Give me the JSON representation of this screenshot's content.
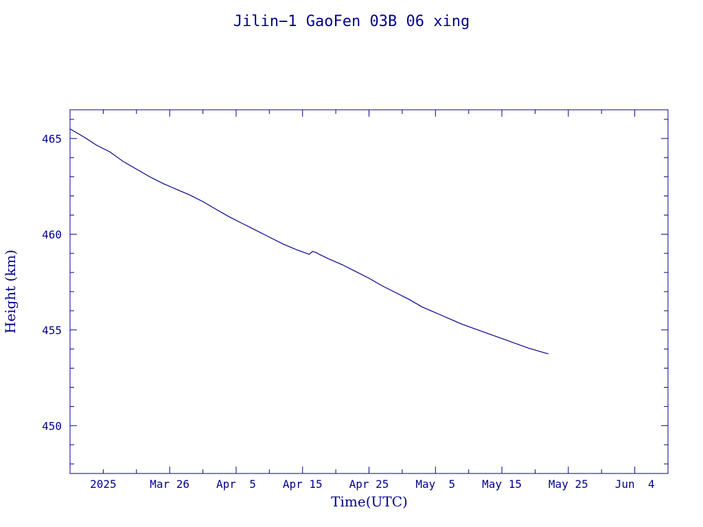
{
  "chart_data": {
    "type": "line",
    "title": "Jilin−1 GaoFen 03B 06 xing",
    "xlabel": "Time(UTC)",
    "ylabel": "Height (km)",
    "xlim": [
      "2025-03-11",
      "2025-06-09"
    ],
    "ylim": [
      447.5,
      466.5
    ],
    "y_major_ticks": [
      450,
      455,
      460,
      465
    ],
    "y_minor_step": 1,
    "x_tick_labels": [
      {
        "date": "2025-03-16",
        "label": "2025"
      },
      {
        "date": "2025-03-26",
        "label": "Mar 26"
      },
      {
        "date": "2025-04-05",
        "label": "Apr  5"
      },
      {
        "date": "2025-04-15",
        "label": "Apr 15"
      },
      {
        "date": "2025-04-25",
        "label": "Apr 25"
      },
      {
        "date": "2025-05-05",
        "label": "May  5"
      },
      {
        "date": "2025-05-15",
        "label": "May 15"
      },
      {
        "date": "2025-05-25",
        "label": "May 25"
      },
      {
        "date": "2025-06-04",
        "label": "Jun  4"
      }
    ],
    "x_minor_ticks": [
      "2025-03-16",
      "2025-03-21",
      "2025-03-26",
      "2025-03-31",
      "2025-04-05",
      "2025-04-10",
      "2025-04-15",
      "2025-04-20",
      "2025-04-25",
      "2025-04-30",
      "2025-05-05",
      "2025-05-10",
      "2025-05-15",
      "2025-05-20",
      "2025-05-25",
      "2025-05-30",
      "2025-06-04"
    ],
    "x_major_ticks": [
      "2025-03-26",
      "2025-04-05",
      "2025-04-15",
      "2025-04-25",
      "2025-05-05",
      "2025-05-15",
      "2025-05-25",
      "2025-06-04"
    ],
    "grid": false,
    "series": [
      {
        "x": [
          "2025-03-11",
          "2025-03-13",
          "2025-03-15",
          "2025-03-17",
          "2025-03-19",
          "2025-03-21",
          "2025-03-23",
          "2025-03-25",
          "2025-03-27",
          "2025-03-29",
          "2025-03-31",
          "2025-04-02",
          "2025-04-04",
          "2025-04-06",
          "2025-04-08",
          "2025-04-10",
          "2025-04-12",
          "2025-04-14",
          "2025-04-16",
          "2025-04-16T12:00",
          "2025-04-17",
          "2025-04-17T12:00",
          "2025-04-19",
          "2025-04-21",
          "2025-04-23",
          "2025-04-25",
          "2025-04-27",
          "2025-04-29",
          "2025-05-01",
          "2025-05-03",
          "2025-05-05",
          "2025-05-07",
          "2025-05-09",
          "2025-05-11",
          "2025-05-13",
          "2025-05-15",
          "2025-05-17",
          "2025-05-19",
          "2025-05-21",
          "2025-05-22"
        ],
        "y": [
          465.5,
          465.1,
          464.65,
          464.3,
          463.8,
          463.4,
          463.0,
          462.65,
          462.35,
          462.05,
          461.7,
          461.3,
          460.9,
          460.55,
          460.2,
          459.85,
          459.5,
          459.2,
          458.95,
          459.1,
          459.05,
          458.95,
          458.7,
          458.4,
          458.05,
          457.7,
          457.3,
          456.95,
          456.6,
          456.2,
          455.9,
          455.6,
          455.3,
          455.05,
          454.8,
          454.55,
          454.3,
          454.05,
          453.85,
          453.75
        ]
      }
    ]
  }
}
